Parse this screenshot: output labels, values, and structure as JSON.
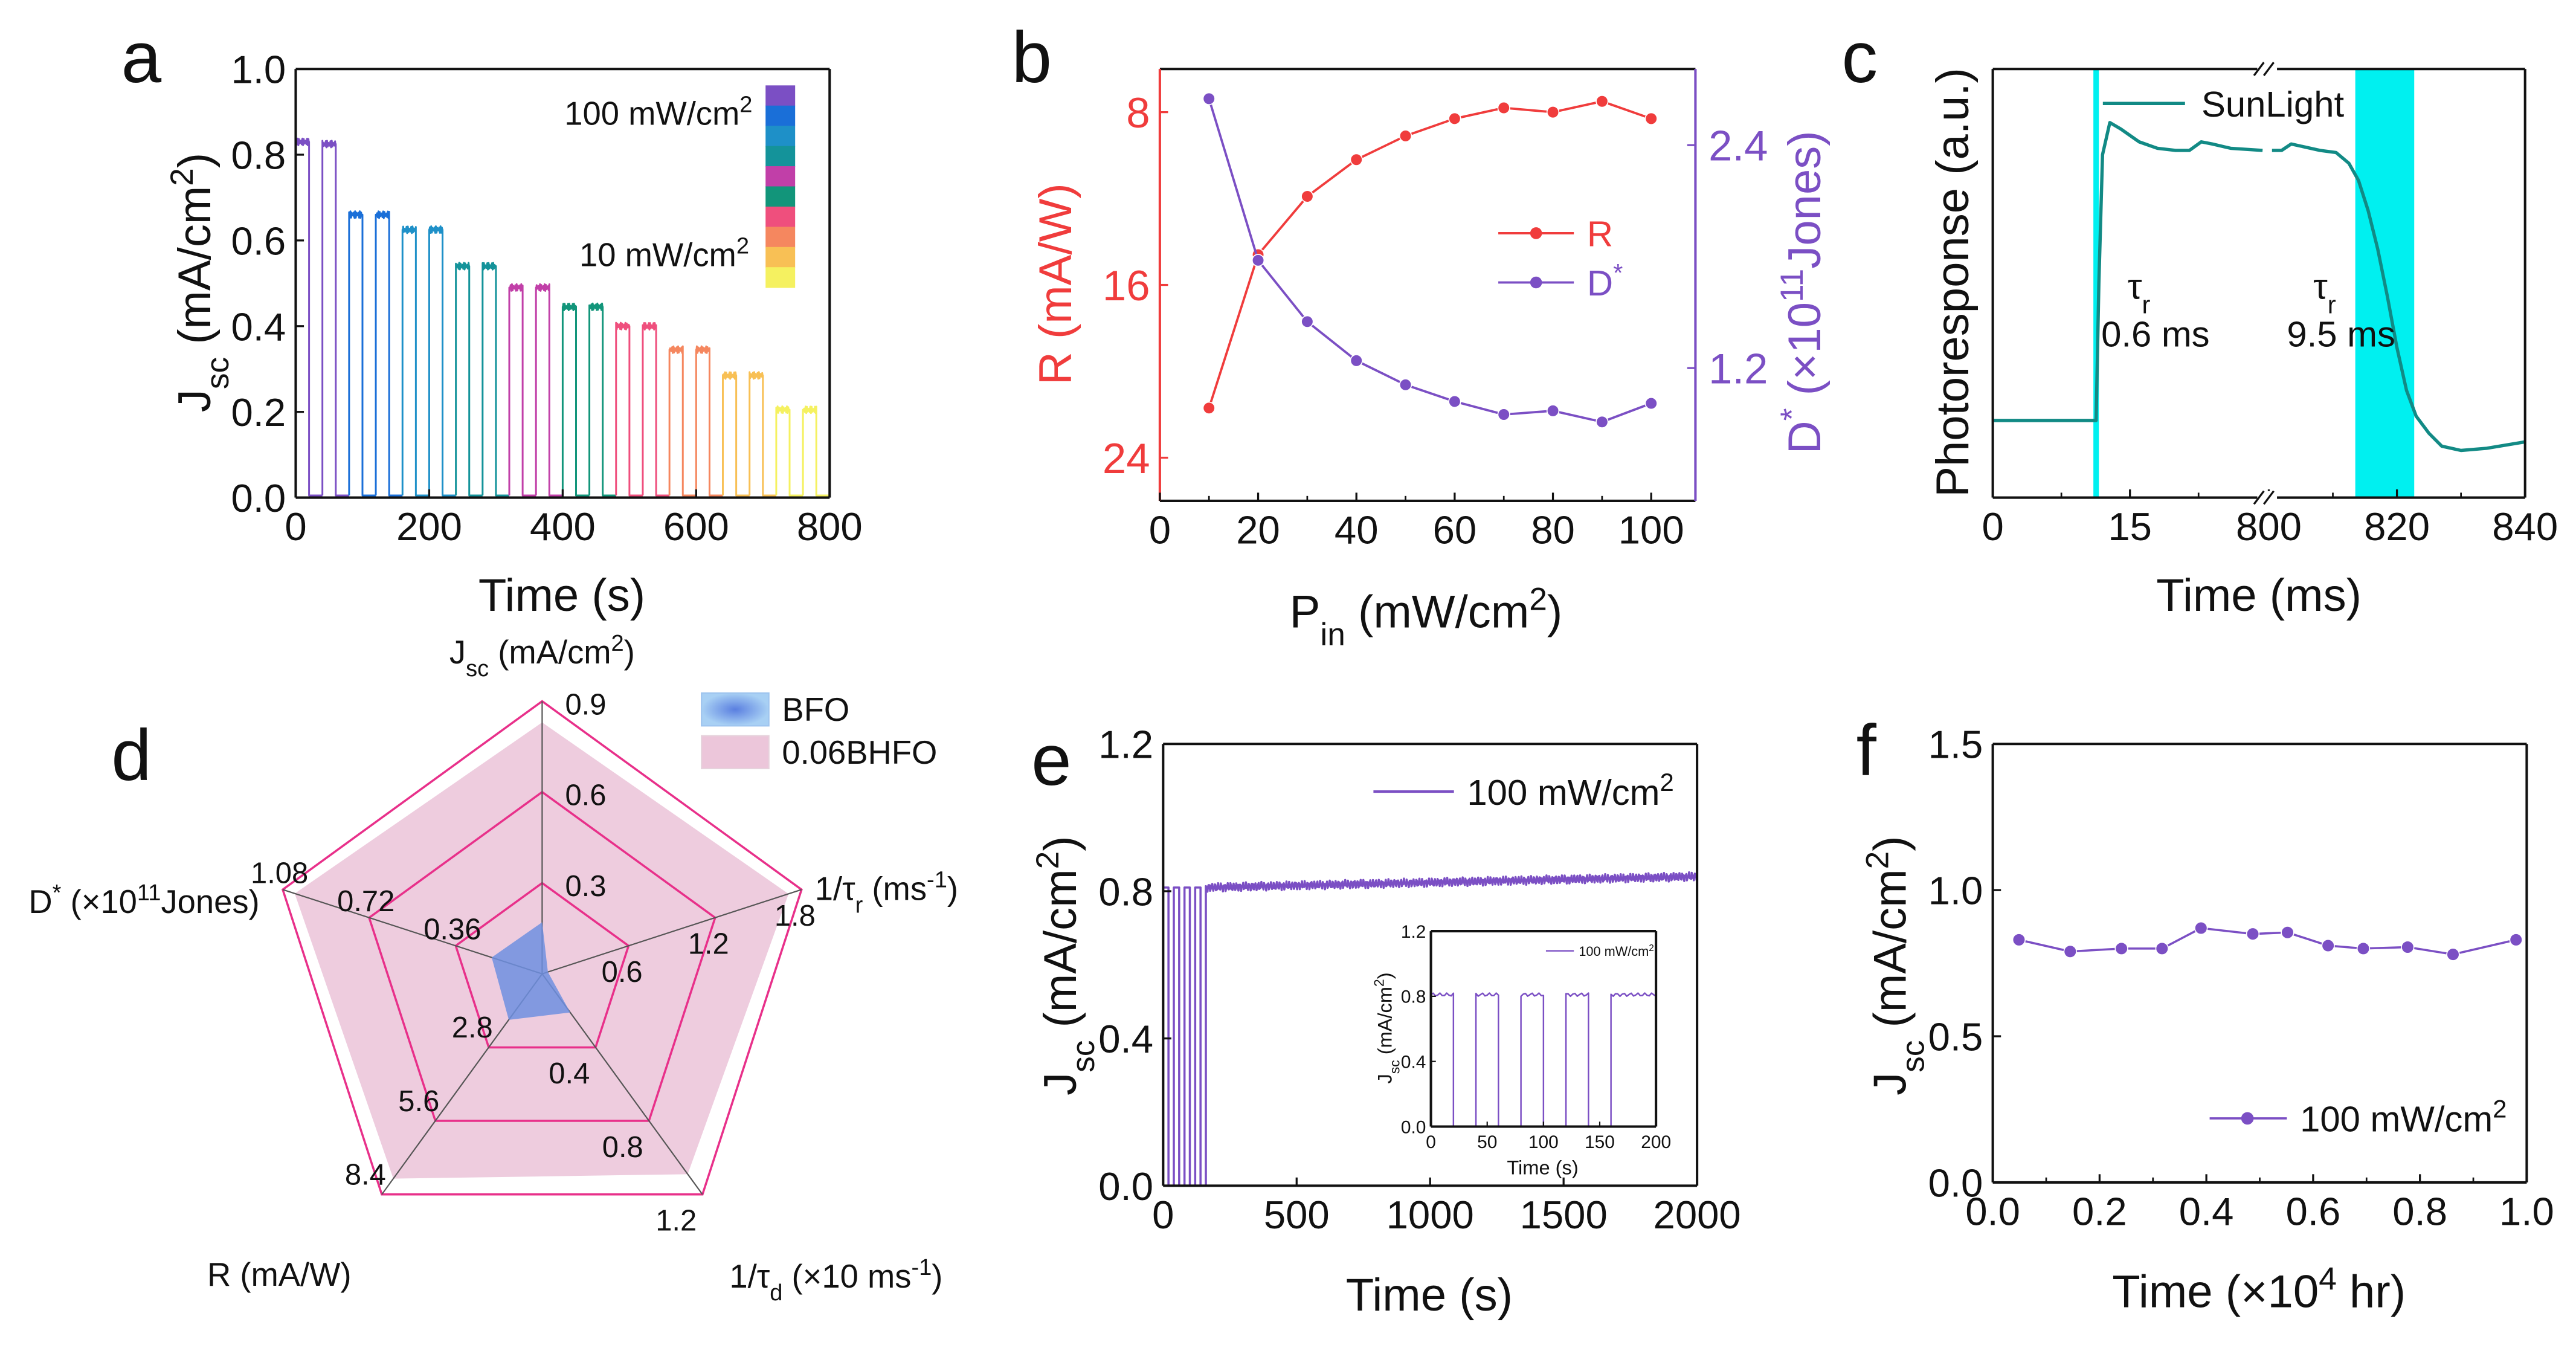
{
  "chart_data": [
    {
      "panel": "a",
      "type": "line",
      "letter": "a",
      "xlabel": "Time (s)",
      "ylabel": "J_{sc} (mA/cm^{2})",
      "xlim": [
        0,
        800
      ],
      "ylim": [
        0,
        1.0
      ],
      "xticks": [
        0,
        200,
        400,
        600,
        800
      ],
      "xtick_labels": [
        "0",
        "200",
        "400",
        "600",
        "800"
      ],
      "yticks": [
        0,
        0.2,
        0.4,
        0.6,
        0.8,
        1.0
      ],
      "ytick_labels": [
        "0.0",
        "0.2",
        "0.4",
        "0.6",
        "0.8",
        "1.0"
      ],
      "pulse_period_s": 40,
      "pulse_on_s": 20,
      "off_level": 0.005,
      "pulse_levels": [
        0.83,
        0.825,
        0.66,
        0.66,
        0.625,
        0.625,
        0.54,
        0.54,
        0.49,
        0.49,
        0.445,
        0.445,
        0.4,
        0.4,
        0.345,
        0.345,
        0.285,
        0.285,
        0.205,
        0.205
      ],
      "pulse_colors": [
        "#7b4fc4",
        "#7b4fc4",
        "#1a6fd8",
        "#1a6fd8",
        "#1e90c8",
        "#1e90c8",
        "#14939a",
        "#14939a",
        "#c13fa8",
        "#c13fa8",
        "#12957a",
        "#12957a",
        "#ef4f7d",
        "#ef4f7d",
        "#f5875f",
        "#f5875f",
        "#f8c055",
        "#f8c055",
        "#f5f160",
        "#f5f160"
      ],
      "colorbar": {
        "top_label": "100 mW/cm^{2}",
        "bottom_label": "10 mW/cm^{2}",
        "colors": [
          "#7b4fc4",
          "#1a6fd8",
          "#1e90c8",
          "#14939a",
          "#c13fa8",
          "#12957a",
          "#ef4f7d",
          "#f5875f",
          "#f8c055",
          "#f5f160"
        ]
      }
    },
    {
      "panel": "b",
      "type": "line",
      "letter": "b",
      "xlabel": "P_{in} (mW/cm^{2})",
      "ylabel_left": "R (mA/W)",
      "ylabel_right": "D^{*} (×10^{11}Jones)",
      "xlim": [
        0,
        109
      ],
      "xticks": [
        0,
        20,
        40,
        60,
        80,
        100
      ],
      "xtick_labels": [
        "0",
        "20",
        "40",
        "60",
        "80",
        "100"
      ],
      "ylim_left": [
        26,
        6
      ],
      "yticks_left": [
        8,
        16,
        24
      ],
      "ytick_labels_left": [
        "8",
        "16",
        "24"
      ],
      "ylim_right": [
        0.485,
        2.81
      ],
      "yticks_right": [
        1.2,
        2.4
      ],
      "ytick_labels_right": [
        "1.2",
        "2.4"
      ],
      "x": [
        10,
        20,
        30,
        40,
        50,
        60,
        70,
        80,
        90,
        100
      ],
      "series": [
        {
          "name": "R",
          "axis": "left",
          "color": "#f03c3c",
          "values": [
            21.7,
            14.6,
            11.9,
            10.2,
            9.1,
            8.3,
            7.8,
            8.0,
            7.5,
            8.3
          ]
        },
        {
          "name": "D^{*}",
          "axis": "right",
          "color": "#7b4fc4",
          "values": [
            2.65,
            1.78,
            1.45,
            1.24,
            1.11,
            1.02,
            0.95,
            0.97,
            0.91,
            1.01
          ]
        }
      ],
      "legend_position": "center-right"
    },
    {
      "panel": "c",
      "type": "line",
      "letter": "c",
      "xlabel": "Time (ms)",
      "ylabel": "Photoresponse (a.u.)",
      "x_segments": [
        [
          0,
          30
        ],
        [
          800,
          840
        ]
      ],
      "xticks": [
        0,
        15,
        800,
        820,
        840
      ],
      "xtick_labels": [
        "0",
        "15",
        "800",
        "820",
        "840"
      ],
      "ylim": [
        0,
        1
      ],
      "highlight_bands": [
        [
          11.0,
          11.6
        ],
        [
          813.5,
          822.7
        ]
      ],
      "band_color": "#00f0f0",
      "series": [
        {
          "name": "SunLight",
          "color": "#128a85",
          "points": [
            [
              0,
              0.18
            ],
            [
              11.3,
              0.18
            ],
            [
              11.6,
              0.5
            ],
            [
              12,
              0.8
            ],
            [
              12.8,
              0.875
            ],
            [
              14,
              0.86
            ],
            [
              16,
              0.83
            ],
            [
              18,
              0.815
            ],
            [
              20,
              0.81
            ],
            [
              21.5,
              0.81
            ],
            [
              22.8,
              0.83
            ],
            [
              24,
              0.825
            ],
            [
              26,
              0.815
            ],
            [
              29.5,
              0.81
            ],
            [
              800.5,
              0.81
            ],
            [
              802,
              0.81
            ],
            [
              803.5,
              0.825
            ],
            [
              805,
              0.82
            ],
            [
              808,
              0.81
            ],
            [
              810.5,
              0.805
            ],
            [
              812.5,
              0.78
            ],
            [
              814,
              0.74
            ],
            [
              815.5,
              0.67
            ],
            [
              817,
              0.58
            ],
            [
              818.5,
              0.47
            ],
            [
              820,
              0.35
            ],
            [
              821.5,
              0.25
            ],
            [
              823,
              0.19
            ],
            [
              825,
              0.15
            ],
            [
              827,
              0.12
            ],
            [
              830,
              0.11
            ],
            [
              834,
              0.115
            ],
            [
              840,
              0.13
            ]
          ]
        }
      ],
      "annotations": [
        {
          "symbol": "τ_{r}",
          "value": "0.6 ms"
        },
        {
          "symbol": "τ_{r}",
          "value": "9.5 ms"
        }
      ],
      "legend_position": "top-center"
    },
    {
      "panel": "d",
      "type": "radar",
      "letter": "d",
      "axes": [
        {
          "label": "J_{sc} (mA/cm^{2})",
          "max": 0.9,
          "ring_labels": [
            "0.3",
            "0.6",
            "0.9"
          ]
        },
        {
          "label": "1/τ_{r} (ms^{-1})",
          "max": 1.8,
          "ring_labels": [
            "0.6",
            "1.2",
            "1.8"
          ]
        },
        {
          "label": "1/τ_{d} (×10 ms^{-1})",
          "max": 1.2,
          "ring_labels": [
            "0.4",
            "0.8",
            "1.2"
          ]
        },
        {
          "label": "R (mA/W)",
          "max": 8.4,
          "ring_labels": [
            "2.8",
            "5.6",
            "8.4"
          ]
        },
        {
          "label": "D^{*} (×10^{11}Jones)",
          "max": 1.08,
          "ring_labels": [
            "0.36",
            "0.72",
            "1.08"
          ]
        }
      ],
      "series": [
        {
          "name": "BFO",
          "color": "#6f8fe0",
          "values": [
            0.17,
            0.04,
            0.21,
            1.75,
            0.21
          ]
        },
        {
          "name": "0.06BHFO",
          "color": "#ecc6da",
          "values": [
            0.83,
            1.71,
            1.09,
            7.8,
            1.03
          ]
        }
      ],
      "ring_color": "#e8308a",
      "legend_position": "top-right"
    },
    {
      "panel": "e",
      "type": "line",
      "letter": "e",
      "xlabel": "Time (s)",
      "ylabel": "J_{sc} (mA/cm^{2})",
      "xlim": [
        0,
        2000
      ],
      "ylim": [
        0,
        1.2
      ],
      "xticks": [
        0,
        500,
        1000,
        1500,
        2000
      ],
      "xtick_labels": [
        "0",
        "500",
        "1000",
        "1500",
        "2000"
      ],
      "yticks": [
        0,
        0.4,
        0.8,
        1.2
      ],
      "ytick_labels": [
        "0.0",
        "0.4",
        "0.8",
        "1.2"
      ],
      "series": [
        {
          "name": "100 mW/cm^{2}",
          "color": "#7b4fc4",
          "pulse_period_s": 40,
          "pulse_on_s": 20,
          "pulses_until_s": 160,
          "level_start": 0.81,
          "level_end": 0.84
        }
      ],
      "inset": {
        "xlabel": "Time (s)",
        "ylabel": "J_{sc} (mA/cm^{2})",
        "xlim": [
          0,
          200
        ],
        "ylim": [
          0,
          1.2
        ],
        "xticks": [
          0,
          50,
          100,
          150,
          200
        ],
        "xtick_labels": [
          "0",
          "50",
          "100",
          "150",
          "200"
        ],
        "yticks": [
          0,
          0.4,
          0.8,
          1.2
        ],
        "ytick_labels": [
          "0.0",
          "0.4",
          "0.8",
          "1.2"
        ],
        "legend": "100 mW/cm^{2}",
        "level": 0.81,
        "on_intervals": [
          [
            0,
            20
          ],
          [
            40,
            60
          ],
          [
            80,
            100
          ],
          [
            120,
            140
          ],
          [
            160,
            200
          ]
        ]
      },
      "legend_position": "top-right"
    },
    {
      "panel": "f",
      "type": "line",
      "letter": "f",
      "xlabel": "Time (×10^{4} hr)",
      "ylabel": "J_{sc} (mA/cm^{2})",
      "xlim": [
        0,
        1.0
      ],
      "ylim": [
        0,
        1.5
      ],
      "xticks": [
        0,
        0.2,
        0.4,
        0.6,
        0.8,
        1.0
      ],
      "xtick_labels": [
        "0.0",
        "0.2",
        "0.4",
        "0.6",
        "0.8",
        "1.0"
      ],
      "yticks": [
        0,
        0.5,
        1.0,
        1.5
      ],
      "ytick_labels": [
        "0.0",
        "0.5",
        "1.0",
        "1.5"
      ],
      "series": [
        {
          "name": "100 mW/cm^{2}",
          "color": "#7b4fc4",
          "x": [
            0.049,
            0.145,
            0.241,
            0.317,
            0.39,
            0.487,
            0.552,
            0.628,
            0.694,
            0.777,
            0.862,
            0.98
          ],
          "y": [
            0.83,
            0.79,
            0.8,
            0.8,
            0.87,
            0.85,
            0.855,
            0.81,
            0.8,
            0.805,
            0.78,
            0.83
          ]
        }
      ],
      "legend_position": "bottom-right"
    }
  ]
}
